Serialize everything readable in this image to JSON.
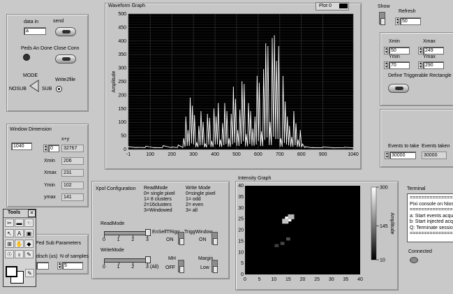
{
  "top_left": {
    "data_in_label": "data in",
    "data_in_value": "a",
    "send_label": "send",
    "peds_done_label": "Peds An Done",
    "close_conn_label": "Close Conn",
    "mode_label": "MODE",
    "nosub_label": "NOSUB",
    "sub_label": "SUB",
    "write2file_label": "Write2file"
  },
  "window_dim": {
    "title": "Window Dimension",
    "value": "1040",
    "xy_label": "x+y",
    "xy_index": "0",
    "xy_value": "32767",
    "xmin_label": "Xmin",
    "xmin_value": "206",
    "xmax_label": "Xmax",
    "xmax_value": "231",
    "ymin_label": "Ymin",
    "ymin_value": "102",
    "ymax_label": "ymax",
    "ymax_value": "141"
  },
  "ped_sub": {
    "title": "Ped Sub Parameters",
    "disch_label": "disch (us)",
    "nsamples_label": "N of samples",
    "nsamples_value": "5"
  },
  "tools": {
    "title": "Tools",
    "close": "✕",
    "items": [
      "✂",
      "▬",
      "☜",
      "↖",
      "A",
      "▣",
      "⊞",
      "✋",
      "◆",
      "☉",
      "⬨",
      "✎"
    ]
  },
  "waveform": {
    "title": "Waveform Graph",
    "plot_legend": "Plot 0",
    "ylabel": "Amplitude"
  },
  "xpol": {
    "title": "Xpol Configuration",
    "readmode_header": "ReadMode",
    "readmode_lines": [
      "0= single pixel",
      "1= 8 clusters",
      "2=16clusters",
      "3=Windowed"
    ],
    "writemode_header": "Write Mode",
    "writemode_lines": [
      "0=single pixel",
      "1= odd",
      "2= even",
      "3= all"
    ],
    "readmode_slider_label": "ReadMode",
    "writemode_slider_label": "WriteMode",
    "readmode_ticks": [
      "0",
      "1",
      "2",
      "3"
    ],
    "writemode_ticks": [
      "0",
      "1",
      "2",
      "3 (All)"
    ],
    "readmode_value": 3,
    "writemode_value": 3,
    "enself_label": "EnSelfTRigg",
    "enself_state": "ON",
    "triggwin_label": "TriggWindow",
    "triggwin_state": "ON",
    "mh_label": "MH",
    "mh_state": "OFF",
    "margin_label": "Margin",
    "margin_state": "Low"
  },
  "intensity": {
    "title": "Intensity Graph",
    "scale_label": "Amplitude",
    "scale_ticks": [
      "300",
      "145",
      "10"
    ]
  },
  "right": {
    "show_label": "Show",
    "refresh_label": "Refresh",
    "refresh_value": "50",
    "xmin_label": "Xmin",
    "xmin_value": "50",
    "xmax_label": "Xmax",
    "xmax_value": "249",
    "ymin_label": "Ymin",
    "ymin_value": "70",
    "ymax_label": "Ymax",
    "ymax_value": "290",
    "define_label": "Define Triggerable Rectangle",
    "events_take_label": "Events to take",
    "events_take_value": "30000",
    "events_taken_label": "Events taken",
    "events_taken_value": "30000",
    "terminal_label": "Terminal",
    "terminal_lines": [
      "=================",
      "Pixi console on Nios",
      "=================",
      "a: Start events acqui",
      "b: Start injected acqu",
      "Q: Terminate session",
      "================="
    ],
    "connected_label": "Connected"
  },
  "chart_data": [
    {
      "type": "line",
      "title": "Waveform Graph",
      "ylabel": "Amplitude",
      "xlim": [
        -1,
        1040
      ],
      "ylim": [
        0,
        500
      ],
      "x_ticks": [
        "-1",
        "100",
        "200",
        "300",
        "400",
        "500",
        "600",
        "700",
        "800",
        "900",
        "1040"
      ],
      "y_ticks": [
        "0",
        "50",
        "100",
        "150",
        "200",
        "250",
        "300",
        "350",
        "400",
        "450",
        "500"
      ],
      "grid": true,
      "series": [
        {
          "x": [
            -1,
            40,
            80,
            120,
            160,
            200,
            230,
            255,
            265,
            275,
            285,
            295,
            305,
            315,
            325,
            335,
            345,
            355,
            365,
            375,
            385,
            395,
            405,
            415,
            425,
            435,
            445,
            455,
            465,
            475,
            485,
            495,
            505,
            515,
            525,
            535,
            545,
            555,
            565,
            575,
            585,
            595,
            605,
            615,
            625,
            635,
            645,
            655,
            665,
            675,
            685,
            695,
            705,
            715,
            725,
            735,
            745,
            755,
            765,
            775,
            785,
            795,
            805,
            820,
            850,
            900,
            950,
            1000,
            1040
          ],
          "y": [
            10,
            8,
            12,
            7,
            14,
            9,
            16,
            40,
            120,
            70,
            190,
            160,
            125,
            25,
            85,
            140,
            100,
            20,
            130,
            115,
            30,
            150,
            120,
            170,
            35,
            95,
            170,
            140,
            40,
            130,
            230,
            185,
            70,
            145,
            250,
            240,
            55,
            170,
            140,
            75,
            120,
            270,
            245,
            65,
            295,
            390,
            380,
            100,
            410,
            420,
            325,
            380,
            40,
            270,
            175,
            120,
            85,
            45,
            140,
            95,
            35,
            70,
            20,
            10,
            7,
            9,
            6,
            8,
            5
          ]
        }
      ]
    },
    {
      "type": "heatmap",
      "title": "Intensity Graph",
      "xlim": [
        0,
        40
      ],
      "ylim": [
        0,
        40
      ],
      "x_ticks": [
        "0",
        "5",
        "10",
        "15",
        "20",
        "25",
        "30",
        "35",
        "40"
      ],
      "y_ticks": [
        "0",
        "5",
        "10",
        "15",
        "20",
        "25",
        "30",
        "35",
        "40"
      ],
      "colorbar": {
        "min": 10,
        "max": 300,
        "label": "Amplitude"
      },
      "hot_spots": [
        {
          "x": 15,
          "y": 25,
          "value": 300
        },
        {
          "x": 14,
          "y": 24,
          "value": 220
        },
        {
          "x": 16,
          "y": 26,
          "value": 200
        },
        {
          "x": 15,
          "y": 16,
          "value": 60
        },
        {
          "x": 13,
          "y": 14,
          "value": 50
        },
        {
          "x": 11,
          "y": 13,
          "value": 40
        }
      ]
    }
  ]
}
